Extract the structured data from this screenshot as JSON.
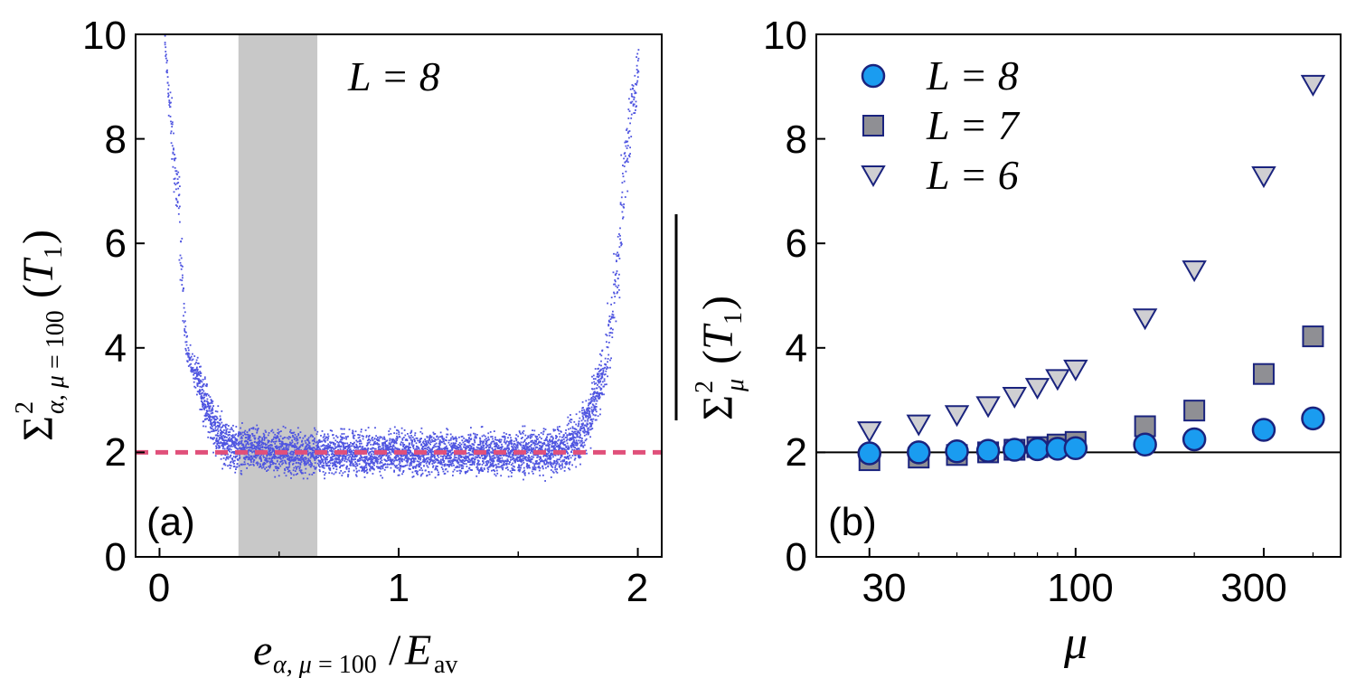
{
  "chart_data": [
    {
      "panel": "(a)",
      "type": "scatter",
      "annotation": "L = 8",
      "xlabel": "e_{α, μ=100} / E_av",
      "ylabel": "Σ²_{α, μ=100}(T₁)",
      "xlim": [
        -0.1,
        2.1
      ],
      "ylim": [
        0,
        10
      ],
      "xticks": [
        "0",
        "1",
        "2"
      ],
      "yticks": [
        "0",
        "2",
        "4",
        "6",
        "8",
        "10"
      ],
      "reference_line": {
        "y": 2,
        "style": "dashed",
        "color": "#e0507a"
      },
      "shaded_band": {
        "x": [
          0.33,
          0.66
        ],
        "color": "#c8c8c8"
      },
      "point_color": "#4f55e0",
      "envelope": {
        "x": [
          0.02,
          0.05,
          0.08,
          0.1,
          0.12,
          0.15,
          0.2,
          0.25,
          0.3,
          0.4,
          0.6,
          0.8,
          1.0,
          1.2,
          1.4,
          1.6,
          1.7,
          1.75,
          1.8,
          1.85,
          1.88,
          1.92,
          1.95,
          2.0
        ],
        "mean": [
          9.8,
          8.0,
          6.5,
          4.5,
          3.8,
          3.5,
          2.8,
          2.3,
          2.1,
          2.05,
          2.0,
          2.0,
          2.0,
          2.0,
          2.0,
          2.0,
          2.1,
          2.3,
          2.8,
          3.5,
          4.2,
          6.0,
          7.8,
          9.5
        ],
        "spread": [
          0.2,
          0.6,
          0.8,
          0.3,
          0.2,
          0.3,
          0.4,
          0.4,
          0.35,
          0.35,
          0.35,
          0.35,
          0.35,
          0.35,
          0.35,
          0.35,
          0.4,
          0.4,
          0.5,
          0.5,
          0.6,
          0.8,
          0.8,
          0.3
        ]
      }
    },
    {
      "panel": "(b)",
      "type": "scatter",
      "xscale": "log",
      "xlabel": "μ",
      "ylabel": "Σ²_μ(T₁) (overlined)",
      "xlim": [
        22,
        470
      ],
      "ylim": [
        0,
        10
      ],
      "xticks": [
        "30",
        "100",
        "300"
      ],
      "yticks": [
        "0",
        "2",
        "4",
        "6",
        "8",
        "10"
      ],
      "reference_line": {
        "y": 2,
        "style": "solid",
        "color": "#000000"
      },
      "legend_position": "top-left",
      "series": [
        {
          "name": "L = 8",
          "marker": "circle",
          "color": "#1a9cf0",
          "x": [
            30,
            40,
            50,
            60,
            70,
            80,
            90,
            100,
            150,
            200,
            300,
            400
          ],
          "y": [
            1.98,
            2.0,
            2.02,
            2.03,
            2.05,
            2.06,
            2.07,
            2.08,
            2.15,
            2.25,
            2.43,
            2.65
          ]
        },
        {
          "name": "L = 7",
          "marker": "square",
          "color": "#8f8f94",
          "x": [
            30,
            40,
            50,
            60,
            70,
            80,
            90,
            100,
            150,
            200,
            300,
            400
          ],
          "y": [
            1.85,
            1.9,
            1.95,
            2.0,
            2.05,
            2.1,
            2.15,
            2.2,
            2.5,
            2.8,
            3.5,
            4.22
          ]
        },
        {
          "name": "L = 6",
          "marker": "triangle-down",
          "color": "#cfcfd2",
          "x": [
            30,
            40,
            50,
            60,
            70,
            80,
            90,
            100,
            150,
            200,
            300,
            400
          ],
          "y": [
            2.42,
            2.55,
            2.73,
            2.9,
            3.08,
            3.25,
            3.42,
            3.6,
            4.58,
            5.5,
            7.3,
            9.05
          ]
        }
      ]
    }
  ]
}
